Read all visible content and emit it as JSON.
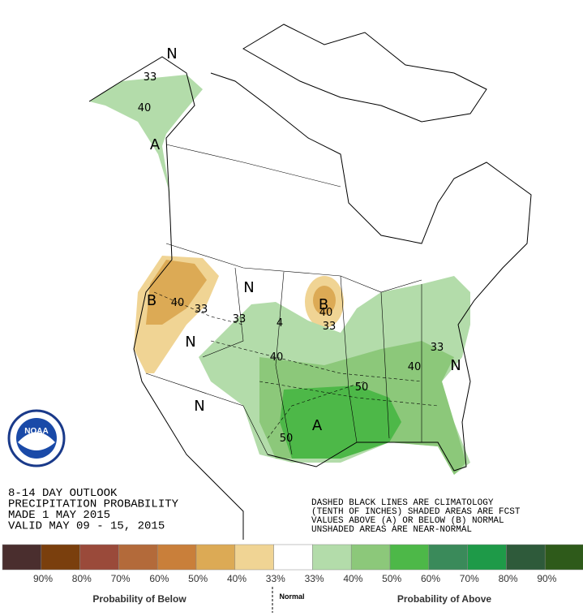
{
  "map": {
    "labels": [
      "N",
      "33",
      "40",
      "A",
      "B",
      "40",
      "33",
      "33",
      "N",
      "N",
      "N",
      "B",
      "40",
      "33",
      "4",
      "40",
      "50",
      "A",
      "50",
      "33",
      "40",
      "N"
    ]
  },
  "logo": {
    "text": "NOAA"
  },
  "outlook": {
    "lines": [
      "8-14 DAY OUTLOOK",
      "PRECIPITATION PROBABILITY",
      "MADE  1 MAY 2015",
      "VALID  MAY 09 - 15, 2015"
    ]
  },
  "notes": {
    "lines": [
      "DASHED BLACK LINES ARE CLIMATOLOGY",
      "(TENTH OF INCHES) SHADED AREAS ARE FCST",
      "VALUES ABOVE (A) OR BELOW (B) NORMAL",
      "UNSHADED AREAS ARE NEAR-NORMAL"
    ]
  },
  "legend": {
    "swatches": [
      {
        "color": "#4a2e2e",
        "label": "90%"
      },
      {
        "color": "#7a3f0d",
        "label": "80%"
      },
      {
        "color": "#9a4a3a",
        "label": "70%"
      },
      {
        "color": "#b36a3a",
        "label": "60%"
      },
      {
        "color": "#c97f3a",
        "label": "50%"
      },
      {
        "color": "#dcaa55",
        "label": "40%"
      },
      {
        "color": "#f0d494",
        "label": "33%"
      },
      {
        "color": "#ffffff",
        "label": "33%"
      },
      {
        "color": "#b3dcaa",
        "label": "40%"
      },
      {
        "color": "#8cc87a",
        "label": "50%"
      },
      {
        "color": "#4db848",
        "label": "60%"
      },
      {
        "color": "#3a8a5a",
        "label": "70%"
      },
      {
        "color": "#1e9a48",
        "label": "80%"
      },
      {
        "color": "#2e5a3a",
        "label": "90%"
      },
      {
        "color": "#2e5a1a",
        "label": ""
      }
    ],
    "below": "Probability of Below",
    "normal": "Normal",
    "above": "Probability of Above"
  }
}
